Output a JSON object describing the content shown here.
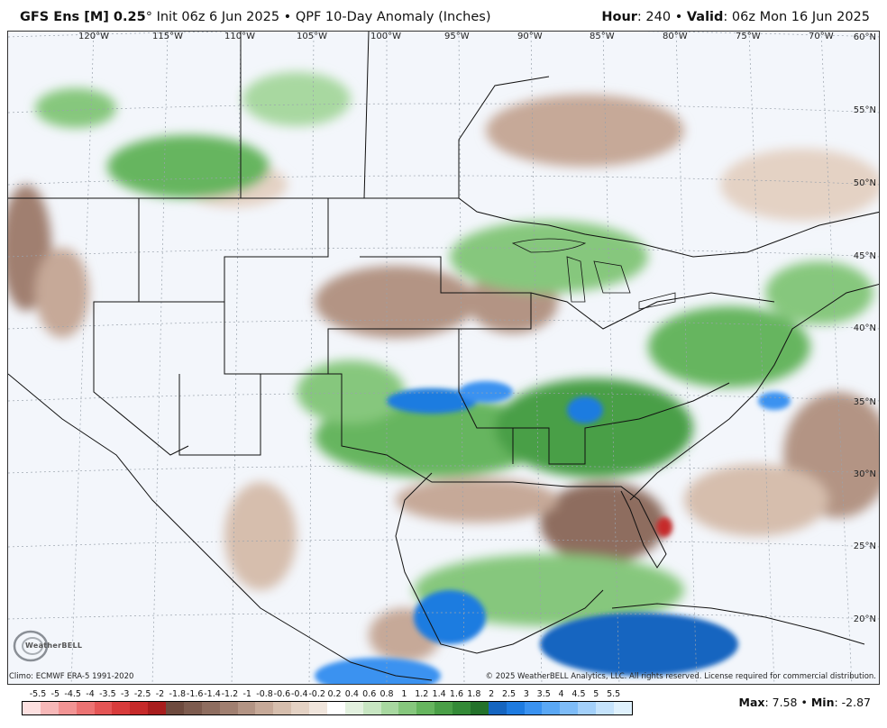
{
  "header": {
    "model": "GFS Ens [M] 0.25",
    "degree": "°",
    "init": "Init 06z 6 Jun 2025",
    "bullet": "•",
    "product": "QPF 10-Day Anomaly (Inches)",
    "hour_label": "Hour",
    "hour_value": ": 240",
    "valid_label": "Valid",
    "valid_value": ": 06z Mon 16 Jun 2025"
  },
  "map": {
    "longitude_labels": [
      "120°W",
      "115°W",
      "110°W",
      "105°W",
      "100°W",
      "95°W",
      "90°W",
      "85°W",
      "80°W",
      "75°W",
      "70°W"
    ],
    "latitude_labels": [
      "60°N",
      "55°N",
      "50°N",
      "45°N",
      "40°N",
      "35°N",
      "30°N",
      "25°N",
      "20°N"
    ],
    "climo": "Climo: ECMWF ERA-5 1991-2020",
    "copyright": "© 2025 WeatherBELL Analytics, LLC. All rights reserved. License required for commercial distribution.",
    "logo_text": "WeatherBELL",
    "logo_icon": "swirl-logo-icon"
  },
  "legend": {
    "labels": [
      "-5.5",
      "-5",
      "-4.5",
      "-4",
      "-3.5",
      "-3",
      "-2.5",
      "-2",
      "-1.8",
      "-1.6",
      "-1.4",
      "-1.2",
      "-1",
      "-0.8",
      "-0.6",
      "-0.4",
      "-0.2",
      "0.2",
      "0.4",
      "0.6",
      "0.8",
      "1",
      "1.2",
      "1.4",
      "1.6",
      "1.8",
      "2",
      "2.5",
      "3",
      "3.5",
      "4",
      "4.5",
      "5",
      "5.5"
    ],
    "colors": [
      "#fde0e0",
      "#f7b8b8",
      "#f29494",
      "#ec7373",
      "#e45555",
      "#d83b3b",
      "#c62a2a",
      "#a81d1d",
      "#6e4a3e",
      "#7d5b4e",
      "#8e6d5f",
      "#a07f70",
      "#b39484",
      "#c6a998",
      "#d6bead",
      "#e4d2c4",
      "#f0e5dc",
      "#ffffff",
      "#e3f1df",
      "#c8e6c2",
      "#a8d8a0",
      "#86c77d",
      "#66b55e",
      "#4a9f47",
      "#348a37",
      "#24722b",
      "#1565c0",
      "#1e7be0",
      "#3a92f0",
      "#5aa8f5",
      "#7ebcf8",
      "#a3d0fa",
      "#c5e3fc",
      "#dff1fd"
    ]
  },
  "stats": {
    "max_label": "Max",
    "max_value": ": 7.58",
    "sep": "•",
    "min_label": "Min",
    "min_value": ": -2.87"
  }
}
